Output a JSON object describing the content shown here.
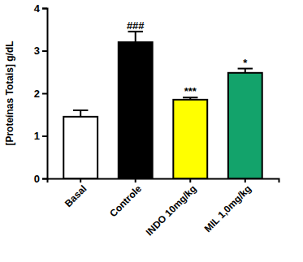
{
  "chart_data": {
    "type": "bar",
    "y_label": "[Proteínas Totais] g/dL",
    "categories": [
      "Basal",
      "Controle",
      "INDO 10mg/kg",
      "MIL 1,0mg/kg"
    ],
    "values": [
      1.45,
      3.2,
      1.85,
      2.48
    ],
    "errors": [
      0.15,
      0.25,
      0.05,
      0.1
    ],
    "colors": [
      "#ffffff",
      "#000000",
      "#ffff00",
      "#13a36b"
    ],
    "annotations": [
      {
        "text": "###",
        "x": "Controle"
      },
      {
        "text": "***",
        "x": "INDO 10mg/kg"
      },
      {
        "text": "*",
        "x": "MIL 1,0mg/kg"
      }
    ],
    "ylim": [
      0,
      4
    ],
    "yticks": [
      0,
      1,
      2,
      3,
      4
    ],
    "grid": false
  }
}
